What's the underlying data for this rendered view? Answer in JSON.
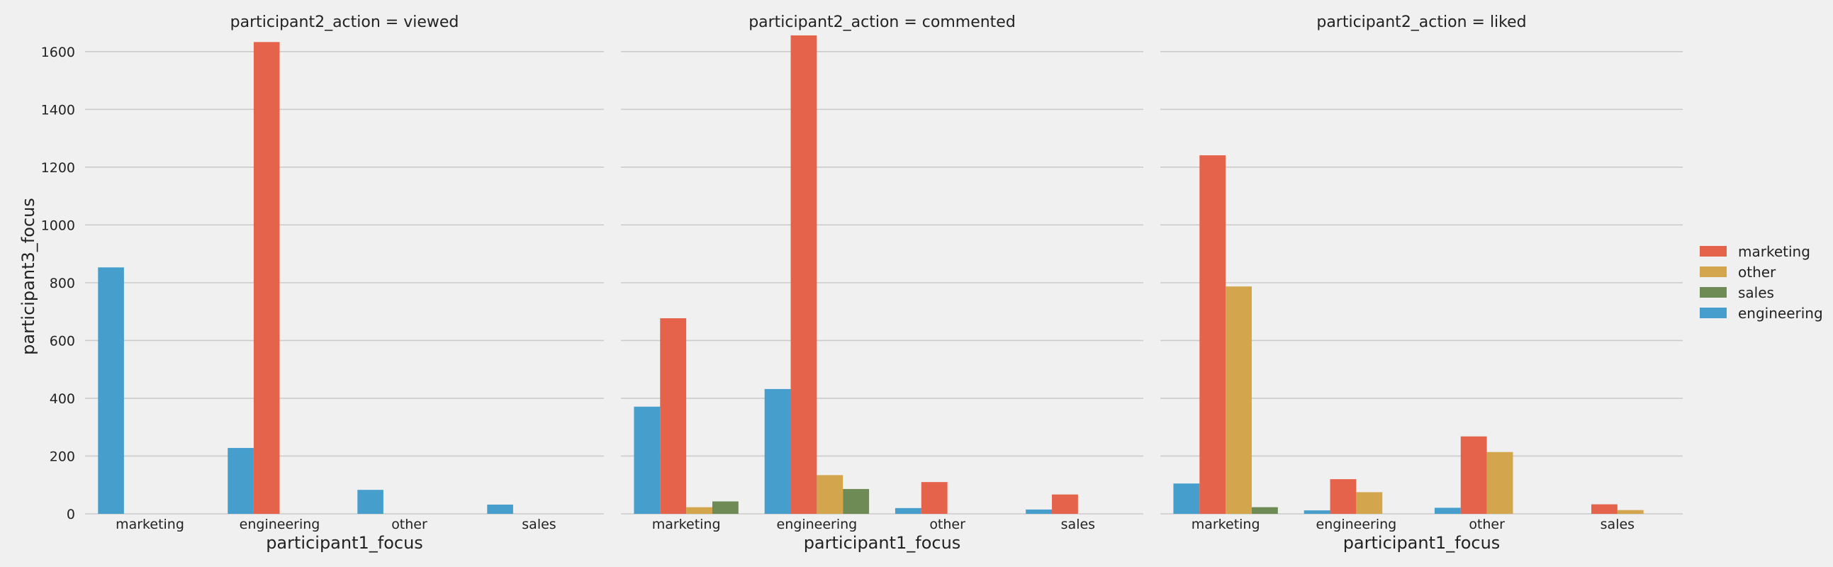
{
  "chart_data": {
    "type": "bar",
    "ylabel": "participant3_focus",
    "ylim": [
      0,
      1700
    ],
    "yticks": [
      0,
      200,
      400,
      600,
      800,
      1000,
      1200,
      1400,
      1600
    ],
    "grid": true,
    "legend_position": "right",
    "hue_order": [
      "engineering",
      "marketing",
      "other",
      "sales"
    ],
    "legend": [
      {
        "name": "marketing",
        "color": "#e5634b"
      },
      {
        "name": "other",
        "color": "#d3a54d"
      },
      {
        "name": "sales",
        "color": "#6e8b55"
      },
      {
        "name": "engineering",
        "color": "#459ecb"
      }
    ],
    "colors": {
      "engineering": "#459ecb",
      "marketing": "#e5634b",
      "other": "#d3a54d",
      "sales": "#6e8b55"
    },
    "facets": [
      {
        "title": "participant2_action = viewed",
        "xlabel": "participant1_focus",
        "categories": [
          "marketing",
          "engineering",
          "other",
          "sales"
        ],
        "series": [
          {
            "name": "engineering",
            "values": [
              853,
              228,
              83,
              32
            ]
          },
          {
            "name": "marketing",
            "values": [
              0,
              1633,
              0,
              0
            ]
          },
          {
            "name": "other",
            "values": [
              0,
              0,
              0,
              0
            ]
          },
          {
            "name": "sales",
            "values": [
              0,
              0,
              0,
              0
            ]
          }
        ]
      },
      {
        "title": "participant2_action = commented",
        "xlabel": "participant1_focus",
        "categories": [
          "marketing",
          "engineering",
          "other",
          "sales"
        ],
        "series": [
          {
            "name": "engineering",
            "values": [
              371,
              432,
              20,
              15
            ]
          },
          {
            "name": "marketing",
            "values": [
              677,
              1656,
              110,
              67
            ]
          },
          {
            "name": "other",
            "values": [
              23,
              134,
              0,
              0
            ]
          },
          {
            "name": "sales",
            "values": [
              43,
              86,
              0,
              0
            ]
          }
        ]
      },
      {
        "title": "participant2_action = liked",
        "xlabel": "participant1_focus",
        "categories": [
          "marketing",
          "engineering",
          "other",
          "sales"
        ],
        "series": [
          {
            "name": "engineering",
            "values": [
              105,
              12,
              21,
              0
            ]
          },
          {
            "name": "marketing",
            "values": [
              1241,
              120,
              268,
              33
            ]
          },
          {
            "name": "other",
            "values": [
              787,
              75,
              214,
              13
            ]
          },
          {
            "name": "sales",
            "values": [
              23,
              0,
              0,
              0
            ]
          }
        ]
      }
    ]
  }
}
